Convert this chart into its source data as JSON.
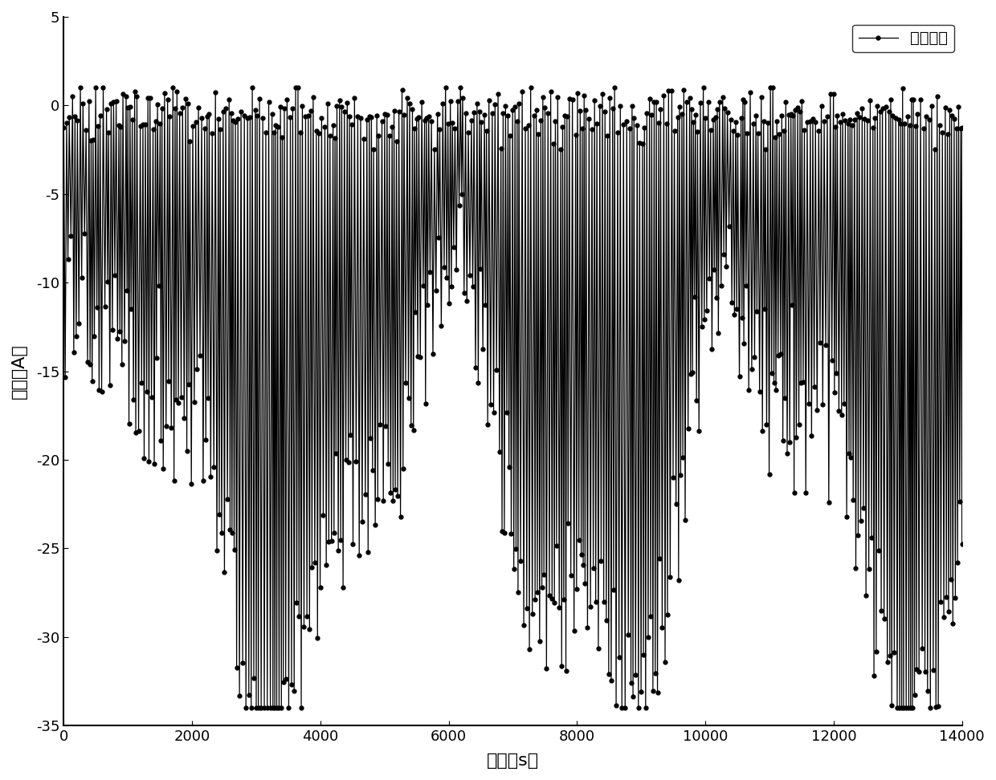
{
  "xlabel": "时间（s）",
  "ylabel": "电流（A）",
  "legend_label": "放电电流",
  "xlim": [
    0,
    14000
  ],
  "ylim": [
    -35,
    5
  ],
  "xticks": [
    0,
    2000,
    4000,
    6000,
    8000,
    10000,
    12000,
    14000
  ],
  "yticks": [
    -35,
    -30,
    -25,
    -20,
    -15,
    -10,
    -5,
    0,
    5
  ],
  "line_color": "black",
  "marker": "o",
  "markersize": 3.5,
  "linewidth": 0.9,
  "background_color": "white",
  "n_cycles": 350,
  "seed": 123
}
